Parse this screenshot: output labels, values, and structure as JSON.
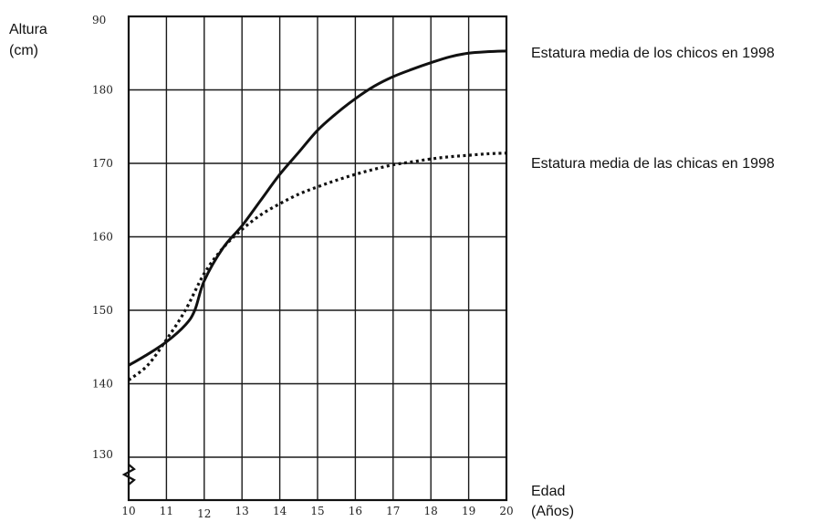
{
  "chart_data": {
    "type": "line",
    "ylabel": [
      "Altura",
      "(cm)"
    ],
    "xlabel": [
      "Edad",
      "(Años)"
    ],
    "y_ticks": [
      "90",
      "180",
      "170",
      "160",
      "150",
      "140",
      "130"
    ],
    "x_ticks": [
      "10",
      "11",
      "12",
      "13",
      "14",
      "15",
      "16",
      "17",
      "18",
      "19",
      "20"
    ],
    "ylim": [
      125,
      190
    ],
    "xlim": [
      10,
      20
    ],
    "grid": true,
    "series": [
      {
        "name": "Estatura media de los chicos en 1998",
        "style": "solid",
        "x": [
          10,
          10.5,
          11,
          11.5,
          11.75,
          12,
          12.5,
          13,
          13.5,
          14,
          14.5,
          15,
          15.5,
          16,
          16.5,
          17,
          17.5,
          18,
          18.5,
          19,
          19.5,
          20
        ],
        "values": [
          142.5,
          144,
          145.7,
          148,
          150,
          154,
          158.5,
          161.5,
          165,
          168.5,
          171.5,
          174.5,
          176.8,
          178.8,
          180.5,
          181.8,
          182.8,
          183.7,
          184.5,
          185,
          185.2,
          185.3
        ]
      },
      {
        "name": "Estatura media de las chicas en 1998",
        "style": "dotted",
        "x": [
          10,
          10.5,
          11,
          11.5,
          12,
          12.5,
          13,
          13.5,
          14,
          14.5,
          15,
          15.5,
          16,
          16.5,
          17,
          17.5,
          18,
          18.5,
          19,
          19.5,
          20
        ],
        "values": [
          140.5,
          142.5,
          146,
          150,
          155,
          158.5,
          161,
          163,
          164.5,
          165.8,
          166.8,
          167.7,
          168.5,
          169.2,
          169.8,
          170.2,
          170.6,
          170.9,
          171.1,
          171.3,
          171.4
        ]
      }
    ]
  }
}
